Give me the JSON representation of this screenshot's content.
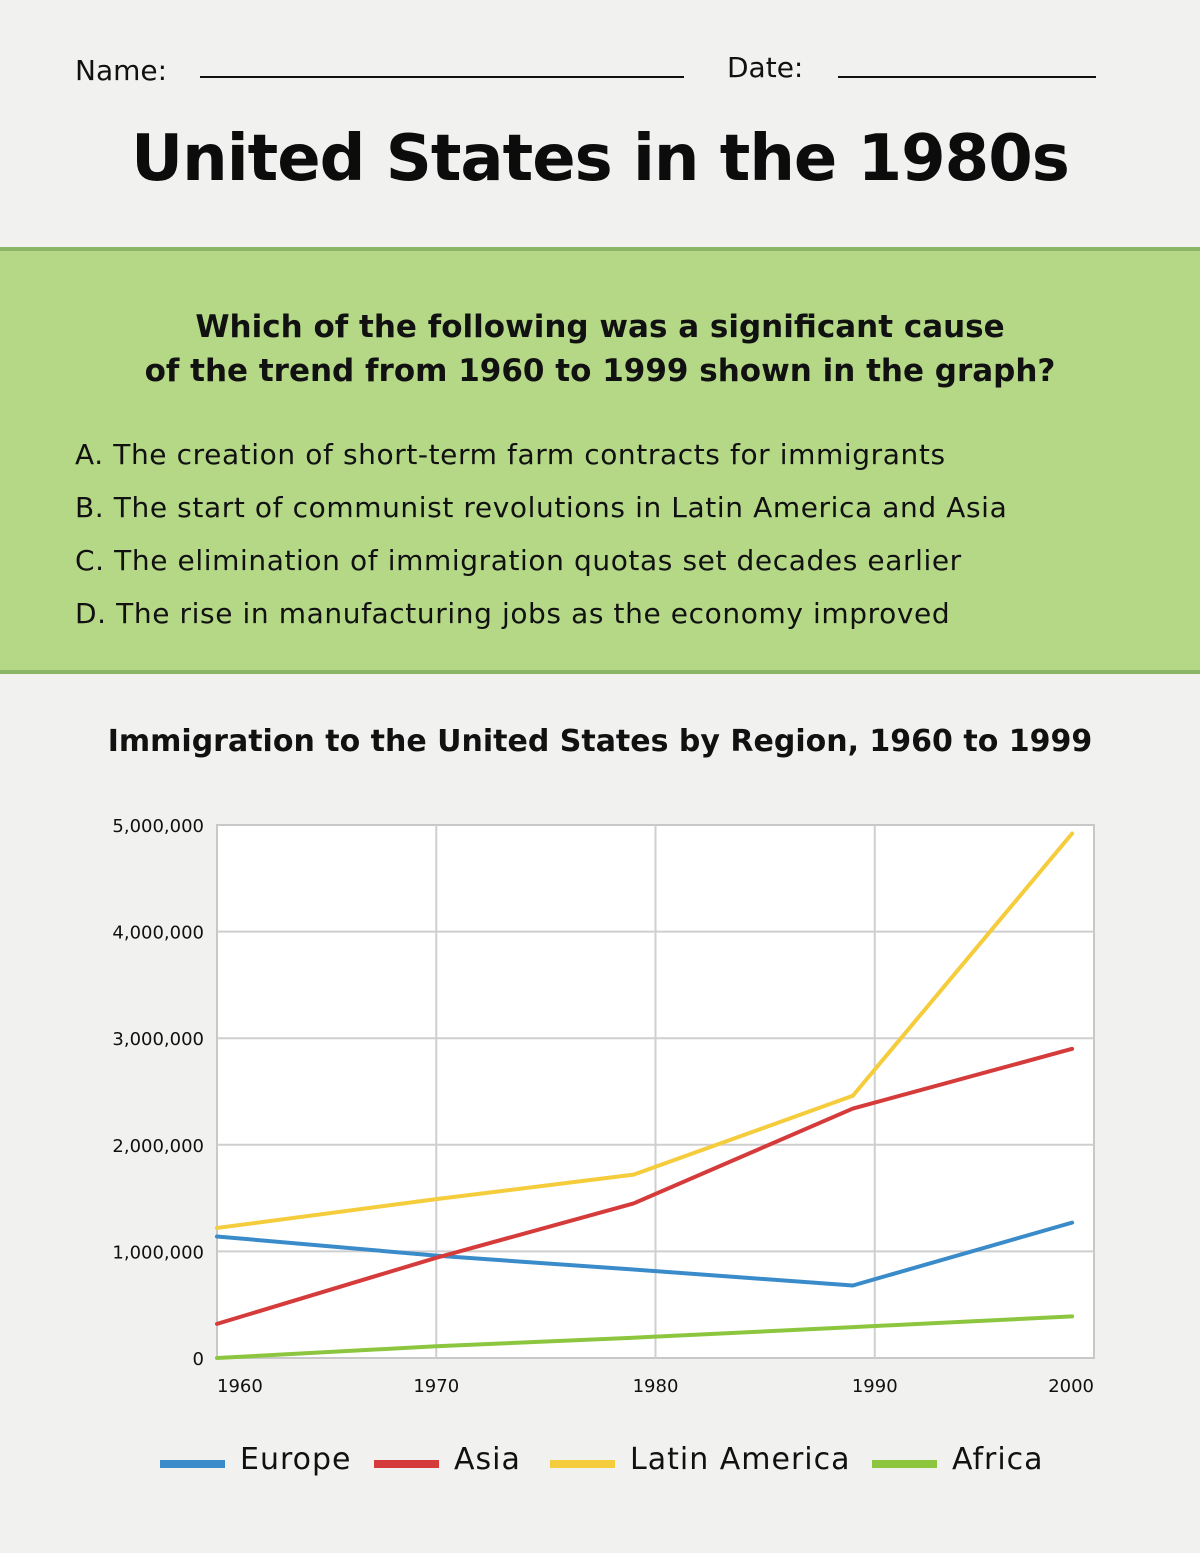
{
  "header": {
    "name_label": "Name:",
    "date_label": "Date:",
    "title": "United States in the 1980s"
  },
  "question": {
    "line1": "Which of the following was a significant cause",
    "line2": "of the trend from 1960 to 1999 shown in the graph?",
    "options": [
      "A. The creation of short-term farm contracts for immigrants",
      "B. The start of communist revolutions in Latin America and Asia",
      "C. The elimination of immigration quotas set decades earlier",
      "D. The rise in manufacturing jobs as the economy improved"
    ]
  },
  "colors": {
    "band": "#b5d887",
    "europe": "#3a8bc9",
    "asia": "#d63b3b",
    "latin_america": "#f5cc3b",
    "africa": "#8cc63e"
  },
  "chart_data": {
    "type": "line",
    "title": "Immigration to the United States by Region, 1960 to 1999",
    "xlabel": "",
    "ylabel": "",
    "x_ticks": [
      "1960",
      "1970",
      "1980",
      "1990",
      "2000"
    ],
    "y_ticks": [
      "0",
      "1,000,000",
      "2,000,000",
      "3,000,000",
      "4,000,000",
      "5,000,000"
    ],
    "ylim": [
      0,
      5000000
    ],
    "xlim": [
      1960,
      2000
    ],
    "grid": true,
    "legend_position": "bottom",
    "x": [
      1960,
      1970,
      1979,
      1989,
      1999
    ],
    "series": [
      {
        "name": "Europe",
        "color": "#3a8bc9",
        "values": [
          1140000,
          960000,
          830000,
          680000,
          1270000
        ]
      },
      {
        "name": "Asia",
        "color": "#d63b3b",
        "values": [
          320000,
          940000,
          1450000,
          2340000,
          2900000
        ]
      },
      {
        "name": "Latin America",
        "color": "#f5cc3b",
        "values": [
          1220000,
          1490000,
          1720000,
          2460000,
          4920000
        ]
      },
      {
        "name": "Africa",
        "color": "#8cc63e",
        "values": [
          0,
          110000,
          190000,
          290000,
          390000
        ]
      }
    ]
  }
}
